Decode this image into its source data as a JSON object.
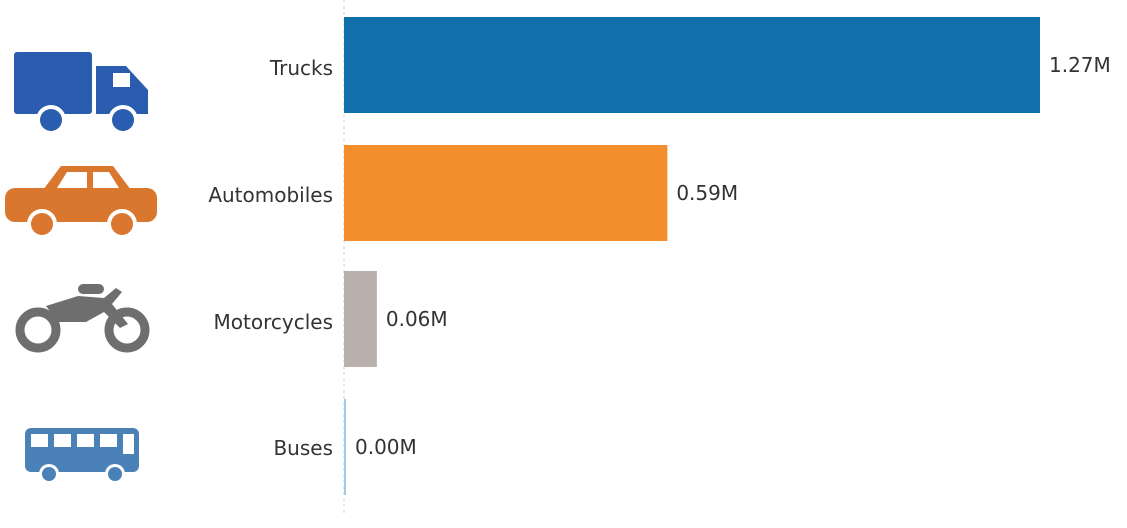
{
  "chart_data": {
    "type": "bar",
    "orientation": "horizontal",
    "categories": [
      "Trucks",
      "Automobiles",
      "Motorcycles",
      "Buses"
    ],
    "values": [
      1.27,
      0.59,
      0.06,
      0.0
    ],
    "value_labels": [
      "1.27M",
      "0.59M",
      "0.06M",
      "0.00M"
    ],
    "colors": [
      "#1170aa",
      "#f28e2b",
      "#bab0ac",
      "#a0cbe8"
    ],
    "icons": [
      "truck-icon",
      "car-icon",
      "motorcycle-icon",
      "bus-icon"
    ],
    "icon_colors": [
      "#2a5db0",
      "#d9772e",
      "#6e6e6e",
      "#4a82b8"
    ],
    "xlim": [
      0,
      1.27
    ],
    "grid": false,
    "legend": "none"
  }
}
